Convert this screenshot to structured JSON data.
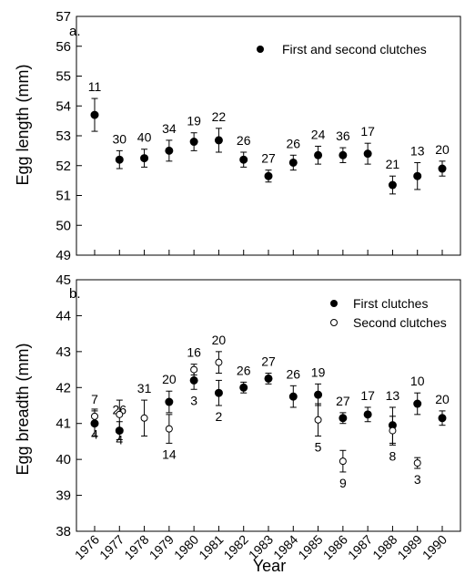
{
  "chart_data": [
    {
      "type": "scatter",
      "panel_label": "a.",
      "title": "",
      "xlabel": "",
      "ylabel": "Egg length (mm)",
      "ylim": [
        49,
        57
      ],
      "yticks": [
        "49",
        "50",
        "51",
        "52",
        "53",
        "54",
        "55",
        "56",
        "57"
      ],
      "x": [
        "1976",
        "1977",
        "1978",
        "1979",
        "1980",
        "1981",
        "1982",
        "1983",
        "1984",
        "1985",
        "1986",
        "1987",
        "1988",
        "1989",
        "1990"
      ],
      "legend_position": "top-right",
      "series": [
        {
          "name": "First and second clutches",
          "marker": "filled",
          "values": [
            53.7,
            52.2,
            52.25,
            52.5,
            52.8,
            52.85,
            52.2,
            51.65,
            52.1,
            52.35,
            52.35,
            52.4,
            51.35,
            51.65,
            51.9
          ],
          "errors": [
            0.55,
            0.3,
            0.3,
            0.35,
            0.3,
            0.4,
            0.25,
            0.2,
            0.25,
            0.3,
            0.25,
            0.35,
            0.3,
            0.45,
            0.25
          ],
          "n_labels": [
            "11",
            "30",
            "40",
            "34",
            "19",
            "22",
            "26",
            "27",
            "26",
            "24",
            "36",
            "17",
            "21",
            "13",
            "20"
          ],
          "label_position": "above"
        }
      ]
    },
    {
      "type": "scatter",
      "panel_label": "b.",
      "title": "",
      "xlabel": "Year",
      "ylabel": "Egg breadth (mm)",
      "ylim": [
        38,
        45
      ],
      "yticks": [
        "38",
        "39",
        "40",
        "41",
        "42",
        "43",
        "44",
        "45"
      ],
      "x": [
        "1976",
        "1977",
        "1978",
        "1979",
        "1980",
        "1981",
        "1982",
        "1983",
        "1984",
        "1985",
        "1986",
        "1987",
        "1988",
        "1989",
        "1990"
      ],
      "legend_position": "top-right",
      "series": [
        {
          "name": "First clutches",
          "marker": "filled",
          "values": [
            41.0,
            40.8,
            null,
            41.6,
            42.2,
            41.85,
            42.0,
            42.25,
            41.75,
            41.8,
            41.15,
            41.25,
            40.95,
            41.55,
            41.15
          ],
          "errors": [
            0.35,
            0.25,
            null,
            0.3,
            0.25,
            0.35,
            0.15,
            0.15,
            0.3,
            0.3,
            0.15,
            0.2,
            0.5,
            0.3,
            0.2
          ],
          "n_labels": [
            "7",
            "26",
            "",
            "20",
            "3",
            "2",
            "26",
            "27",
            "26",
            "19",
            "27",
            "17",
            "13",
            "10",
            "20"
          ],
          "label_positions": [
            "above",
            "above",
            "",
            "above",
            "below",
            "below",
            "above",
            "above",
            "above",
            "above",
            "above",
            "above",
            "above",
            "above",
            "above"
          ]
        },
        {
          "name": "Second clutches",
          "marker": "open",
          "values": [
            41.2,
            41.25,
            41.15,
            40.85,
            42.5,
            42.7,
            null,
            null,
            null,
            41.1,
            39.95,
            null,
            40.8,
            39.9,
            null
          ],
          "errors": [
            0.2,
            0.4,
            0.5,
            0.4,
            0.15,
            0.3,
            null,
            null,
            null,
            0.45,
            0.3,
            null,
            0.4,
            0.15,
            null
          ],
          "n_labels": [
            "4",
            "4",
            "31",
            "14",
            "16",
            "20",
            "",
            "",
            "",
            "5",
            "9",
            "",
            "8",
            "3",
            ""
          ],
          "label_positions": [
            "below",
            "below",
            "above",
            "below",
            "above",
            "above",
            "",
            "",
            "",
            "below",
            "below",
            "",
            "below",
            "below",
            ""
          ]
        }
      ]
    }
  ]
}
